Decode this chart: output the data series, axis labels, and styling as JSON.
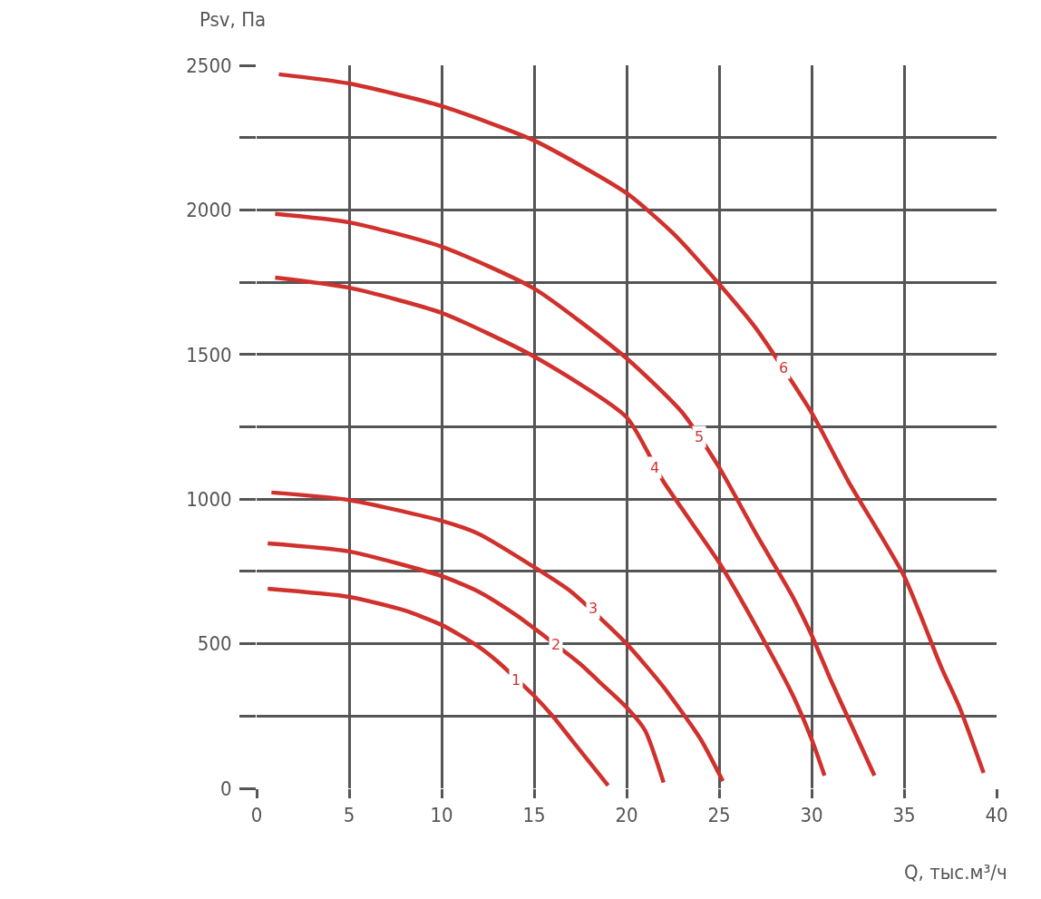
{
  "chart_data": {
    "type": "line",
    "xlabel": "Q, тыс.м³/ч",
    "ylabel": "Psv, Па",
    "xlim": [
      0,
      40
    ],
    "ylim": [
      0,
      2500
    ],
    "xticks": [
      0,
      5,
      10,
      15,
      20,
      25,
      30,
      35,
      40
    ],
    "yticks": [
      0,
      {
        "value": 250,
        "label": null
      },
      500,
      {
        "value": 750,
        "label": null
      },
      1000,
      {
        "value": 1250,
        "label": null
      },
      1500,
      {
        "value": 1750,
        "label": null
      },
      2000,
      {
        "value": 2250,
        "label": null
      },
      2500
    ],
    "grid": true,
    "marker": "none",
    "line_style": "solid",
    "series": [
      {
        "color": "#d0312d",
        "x": [
          0.6,
          5,
          8,
          10,
          12,
          13,
          15,
          16,
          17,
          18,
          19
        ],
        "values": [
          690,
          662,
          615,
          565,
          490,
          440,
          320,
          250,
          170,
          90,
          10
        ]
      },
      {
        "color": "#d0312d",
        "x": [
          0.6,
          5,
          10,
          12,
          14,
          17.5,
          18.5,
          20,
          21,
          22
        ],
        "values": [
          847,
          819,
          734,
          680,
          600,
          430,
          370,
          280,
          200,
          20
        ]
      },
      {
        "color": "#d0312d",
        "x": [
          0.8,
          5,
          10,
          12,
          15,
          17,
          20,
          22,
          24,
          25.2
        ],
        "values": [
          1023,
          997,
          925,
          880,
          765,
          680,
          500,
          350,
          170,
          25
        ]
      },
      {
        "color": "#d0312d",
        "x": [
          1,
          5,
          10,
          15,
          20,
          22,
          25,
          27,
          29,
          30,
          30.7
        ],
        "values": [
          1766,
          1731,
          1644,
          1493,
          1283,
          1060,
          781,
          560,
          320,
          170,
          44
        ]
      },
      {
        "color": "#d0312d",
        "x": [
          1,
          5,
          10,
          15,
          20,
          23,
          25,
          27,
          29,
          30,
          31,
          32,
          33.4
        ],
        "values": [
          1986,
          1957,
          1873,
          1728,
          1487,
          1300,
          1110,
          880,
          660,
          530,
          380,
          240,
          44
        ]
      },
      {
        "color": "#d0312d",
        "x": [
          1.2,
          5,
          10,
          15,
          20,
          22.5,
          25,
          27,
          30,
          32,
          35,
          37,
          38,
          39.3
        ],
        "values": [
          2469,
          2437,
          2359,
          2240,
          2058,
          1920,
          1744,
          1590,
          1299,
          1060,
          734,
          420,
          280,
          53
        ]
      }
    ],
    "annotations": [
      {
        "text": "1",
        "x": 14,
        "y": 375
      },
      {
        "text": "2",
        "x": 16.2,
        "y": 496
      },
      {
        "text": "3",
        "x": 18.2,
        "y": 624
      },
      {
        "text": "4",
        "x": 21.5,
        "y": 1110
      },
      {
        "text": "5",
        "x": 23.9,
        "y": 1217
      },
      {
        "text": "6",
        "x": 28.5,
        "y": 1455
      }
    ]
  }
}
